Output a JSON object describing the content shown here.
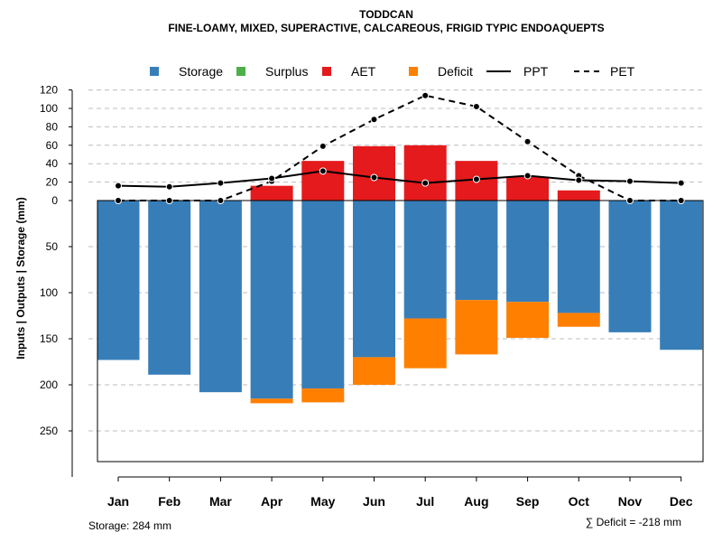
{
  "chart_data": {
    "type": "bar",
    "title": "TODDCAN",
    "subtitle": "FINE-LOAMY, MIXED, SUPERACTIVE, CALCAREOUS, FRIGID TYPIC ENDOAQUEPTS",
    "ylabel": "Inputs | Outputs | Storage    (mm)",
    "categories": [
      "Jan",
      "Feb",
      "Mar",
      "Apr",
      "May",
      "Jun",
      "Jul",
      "Aug",
      "Sep",
      "Oct",
      "Nov",
      "Dec"
    ],
    "upper_ticks": [
      "0",
      "20",
      "40",
      "60",
      "80",
      "100",
      "120"
    ],
    "lower_ticks": [
      "50",
      "100",
      "150",
      "200",
      "250"
    ],
    "upper_range": [
      0,
      120
    ],
    "lower_range": [
      0,
      284
    ],
    "series": [
      {
        "name": "Storage",
        "color": "#377EB8",
        "values": [
          173,
          189,
          208,
          215,
          204,
          170,
          128,
          108,
          110,
          122,
          143,
          162
        ]
      },
      {
        "name": "Surplus",
        "color": "#4DAF4A",
        "values": [
          0,
          0,
          0,
          0,
          0,
          0,
          0,
          0,
          0,
          0,
          0,
          0
        ]
      },
      {
        "name": "AET",
        "color": "#E41A1C",
        "values": [
          0,
          0,
          0,
          16,
          43,
          59,
          60,
          43,
          26,
          11,
          0,
          0
        ]
      },
      {
        "name": "Deficit",
        "color": "#FF7F00",
        "values": [
          0,
          0,
          0,
          5,
          15,
          30,
          54,
          59,
          39,
          15,
          0,
          0
        ]
      },
      {
        "name": "PPT",
        "color": "#000000",
        "style": "solid",
        "values": [
          16,
          15,
          19,
          24,
          32,
          25,
          19,
          23,
          27,
          22,
          21,
          19
        ]
      },
      {
        "name": "PET",
        "color": "#000000",
        "style": "dashed",
        "values": [
          0,
          0,
          0,
          21,
          59,
          88,
          114,
          102,
          64,
          27,
          0,
          0
        ]
      }
    ],
    "legend_position": "top",
    "grid": true,
    "footer_left": "Storage: 284 mm",
    "footer_right": "∑ Deficit = -218 mm"
  }
}
